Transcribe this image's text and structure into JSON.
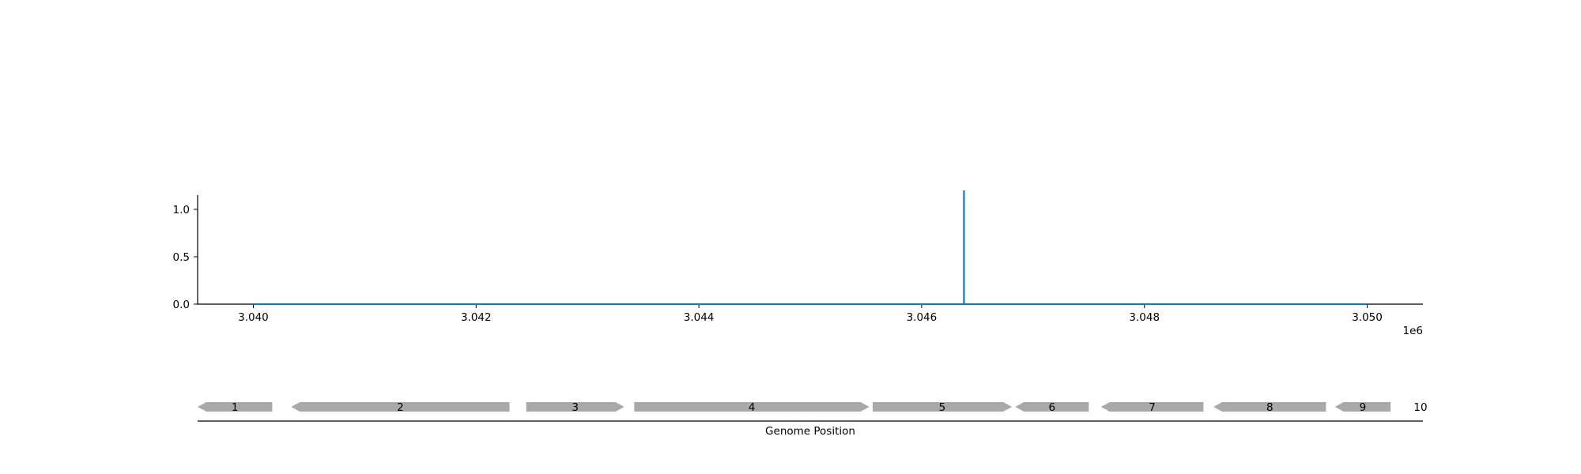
{
  "chart_data": {
    "type": "line",
    "x_offset_label": "1e6",
    "x_ticks": [
      3040000,
      3042000,
      3044000,
      3046000,
      3048000,
      3050000
    ],
    "x_tick_labels": [
      "3.040",
      "3.042",
      "3.044",
      "3.046",
      "3.048",
      "3.050"
    ],
    "y_ticks": [
      0.0,
      0.5,
      1.0
    ],
    "y_tick_labels": [
      "0.0",
      "0.5",
      "1.0"
    ],
    "xlim": [
      3039500,
      3050500
    ],
    "ylim": [
      0,
      1.3
    ],
    "xlabel": "Genome Position",
    "series": [
      {
        "color": "#1f77b4",
        "x": [
          3040000,
          3046380,
          3046380,
          3046380,
          3050000
        ],
        "y": [
          0,
          0,
          1.2,
          0,
          0
        ]
      }
    ],
    "genes": [
      {
        "label": "1",
        "start": 3039500,
        "end": 3040170,
        "strand": "-"
      },
      {
        "label": "2",
        "start": 3040340,
        "end": 3042300,
        "strand": "-"
      },
      {
        "label": "3",
        "start": 3042450,
        "end": 3043330,
        "strand": "+"
      },
      {
        "label": "4",
        "start": 3043420,
        "end": 3045530,
        "strand": "+"
      },
      {
        "label": "5",
        "start": 3045560,
        "end": 3046810,
        "strand": "+"
      },
      {
        "label": "6",
        "start": 3046840,
        "end": 3047500,
        "strand": "-"
      },
      {
        "label": "7",
        "start": 3047610,
        "end": 3048530,
        "strand": "-"
      },
      {
        "label": "8",
        "start": 3048620,
        "end": 3049630,
        "strand": "-"
      },
      {
        "label": "9",
        "start": 3049710,
        "end": 3050210,
        "strand": "-"
      },
      {
        "label": "10",
        "start": null,
        "end": null,
        "strand": null
      }
    ],
    "gene_color": "#a9a9a9"
  }
}
